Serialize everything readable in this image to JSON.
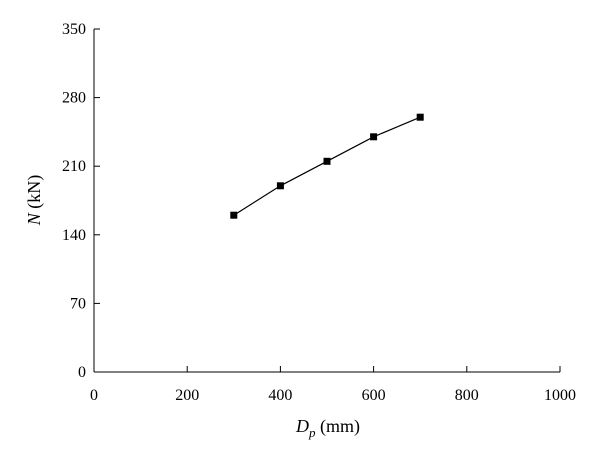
{
  "chart_data": {
    "type": "line",
    "xlabel": {
      "main": "D",
      "sub": "p",
      "unit": " (mm)"
    },
    "ylabel": {
      "main": "N",
      "unit": " (kN)"
    },
    "xlim": [
      0,
      1000
    ],
    "ylim": [
      0,
      350
    ],
    "xticks": [
      0,
      200,
      400,
      600,
      800,
      1000
    ],
    "yticks": [
      0,
      70,
      140,
      210,
      280,
      350
    ],
    "grid": false,
    "marker": "square",
    "series": [
      {
        "x": [
          300,
          400,
          500,
          600,
          700
        ],
        "y": [
          160,
          190,
          215,
          240,
          260
        ]
      }
    ]
  }
}
